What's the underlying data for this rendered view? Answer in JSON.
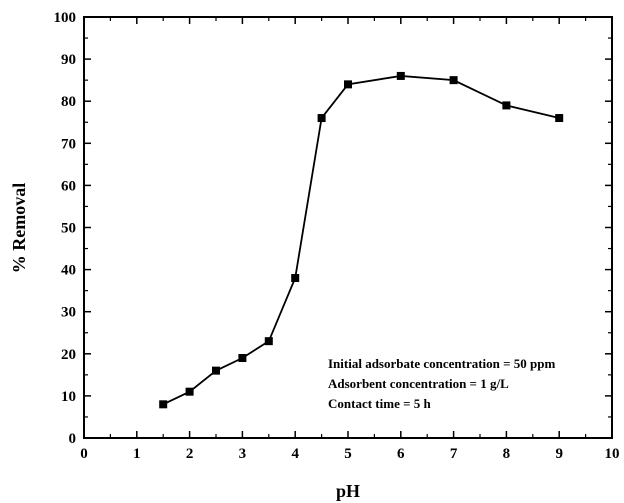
{
  "chart_data": {
    "type": "line",
    "title": "",
    "xlabel": "pH",
    "ylabel": "% Removal",
    "xlim": [
      0,
      10
    ],
    "ylim": [
      0,
      100
    ],
    "xticks": [
      0,
      1,
      2,
      3,
      4,
      5,
      6,
      7,
      8,
      9,
      10
    ],
    "yticks": [
      0,
      10,
      20,
      30,
      40,
      50,
      60,
      70,
      80,
      90,
      100
    ],
    "grid": false,
    "marker": "square",
    "line_color": "#000000",
    "series": [
      {
        "x": [
          1.5,
          2.0,
          2.5,
          3.0,
          3.5,
          4.0,
          4.5,
          5.0,
          6.0,
          7.0,
          8.0,
          9.0
        ],
        "y": [
          8,
          11,
          16,
          19,
          23,
          38,
          76,
          84,
          86,
          85,
          79,
          76
        ]
      }
    ],
    "annotations": [
      "Initial adsorbate concentration = 50 ppm",
      "Adsorbent concentration = 1 g/L",
      "Contact time = 5 h"
    ]
  }
}
